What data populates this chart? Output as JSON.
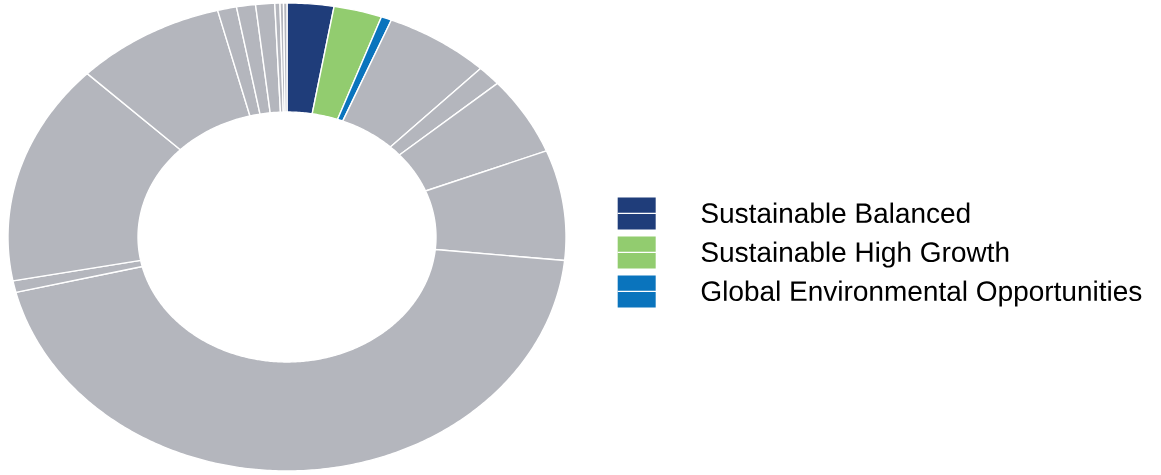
{
  "chart_data": {
    "type": "donut",
    "categories": [
      "Sustainable Balanced",
      "Sustainable High Growth",
      "Global Environmental Opportunities",
      null,
      null,
      null,
      null,
      null,
      null,
      null,
      null,
      null,
      null,
      null,
      null,
      null,
      null
    ],
    "values": [
      2.7,
      2.8,
      0.6,
      6.1,
      1.4,
      5.4,
      7.6,
      44.6,
      0.8,
      15.3,
      8.7,
      1.1,
      1.1,
      1.1,
      0.3,
      0.2,
      0.2
    ],
    "colors": [
      "#1f3d7a",
      "#92cc6f",
      "#0a74bd",
      "#b4b6bd",
      "#b4b6bd",
      "#b4b6bd",
      "#b4b6bd",
      "#b4b6bd",
      "#b4b6bd",
      "#b4b6bd",
      "#b4b6bd",
      "#b4b6bd",
      "#b4b6bd",
      "#b4b6bd",
      "#b4b6bd",
      "#b4b6bd",
      "#b4b6bd"
    ],
    "legend": "right"
  }
}
